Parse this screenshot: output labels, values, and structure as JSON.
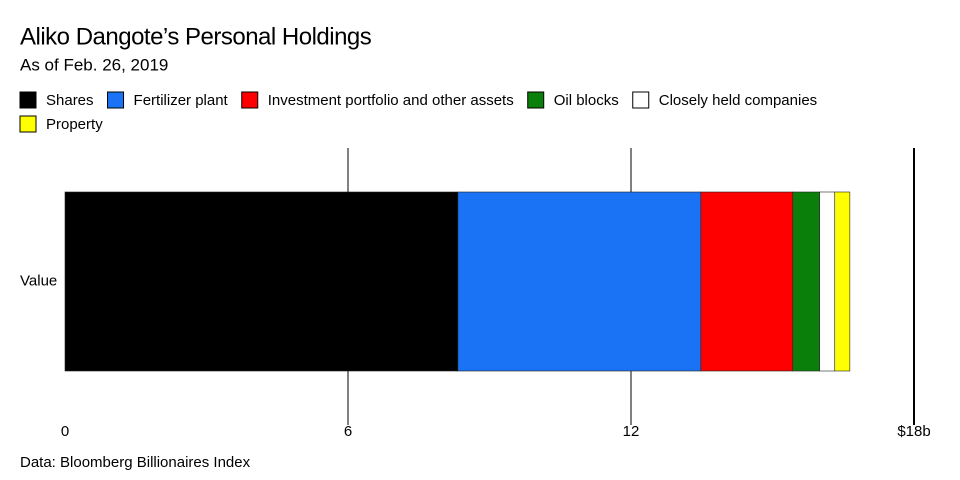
{
  "chart_data": {
    "type": "stacked-bar-horizontal",
    "title": "Aliko Dangote’s Personal Holdings",
    "subtitle": "As of Feb. 26, 2019",
    "source": "Data: Bloomberg Billionaires Index",
    "categories": [
      "Value"
    ],
    "series": [
      {
        "name": "Shares",
        "color": "#000000",
        "values": [
          8.33
        ]
      },
      {
        "name": "Fertilizer plant",
        "color": "#1a73f5",
        "values": [
          5.15
        ]
      },
      {
        "name": "Investment portfolio and other assets",
        "color": "#ff0000",
        "values": [
          1.95
        ]
      },
      {
        "name": "Oil blocks",
        "color": "#0a800a",
        "values": [
          0.57
        ]
      },
      {
        "name": "Closely held companies",
        "color": "#ffffff",
        "values": [
          0.32
        ]
      },
      {
        "name": "Property",
        "color": "#ffff00",
        "values": [
          0.32
        ]
      }
    ],
    "xlim": [
      0,
      18
    ],
    "xticks": [
      0,
      6,
      12,
      {
        "value": 18,
        "label": "$18b"
      }
    ],
    "grid": true
  }
}
